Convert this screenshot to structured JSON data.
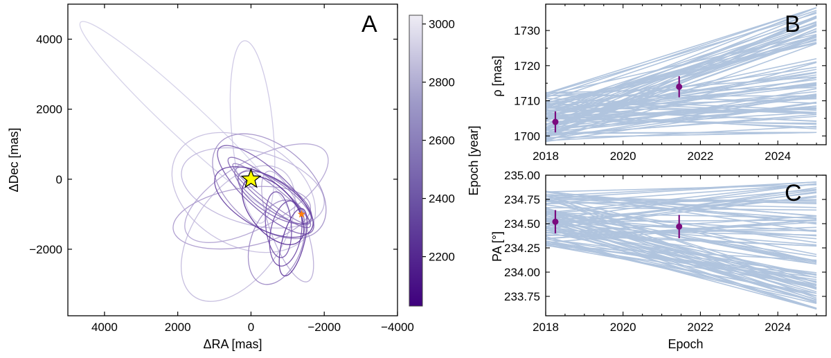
{
  "panels": {
    "A": {
      "letter": "A"
    },
    "B": {
      "letter": "B"
    },
    "C": {
      "letter": "C"
    }
  },
  "colors": {
    "orbit_light": "#d6d3ea",
    "orbit_dark": "#4b1d8f",
    "model_line": "#b0c4de",
    "data_point": "#7a0a7e",
    "star_fill": "#ffff00",
    "companion": "#ff7f0e"
  },
  "chart_data": [
    {
      "panel": "A",
      "type": "line",
      "description": "Sampled orbit tracks of the companion relative to the primary star",
      "xlabel": "ΔRA [mas]",
      "ylabel": "ΔDec [mas]",
      "xlim": [
        5000,
        -4000
      ],
      "ylim": [
        -3900,
        5000
      ],
      "xticks": [
        4000,
        2000,
        0,
        -2000,
        -4000
      ],
      "xtick_labels": [
        "4000",
        "2000",
        "0",
        "−2000",
        "−4000"
      ],
      "yticks": [
        4000,
        2000,
        0,
        -2000
      ],
      "ytick_labels": [
        "4000",
        "2000",
        "0",
        "−2000"
      ],
      "primary_star": {
        "x": 0,
        "y": 0,
        "marker": "star"
      },
      "companion_position": {
        "x": -1380,
        "y": -1000,
        "marker": "star"
      },
      "orbits_shown": [
        {
          "cx": 1800,
          "cy": 1700,
          "a": 3900,
          "b": 480,
          "angle": 137,
          "epoch": 3000
        },
        {
          "cx": -40,
          "cy": 1350,
          "a": 2500,
          "b": 570,
          "angle": 95,
          "epoch": 2950
        },
        {
          "cx": 200,
          "cy": -380,
          "a": 2100,
          "b": 1450,
          "angle": 150,
          "epoch": 2900
        },
        {
          "cx": 350,
          "cy": -1550,
          "a": 2100,
          "b": 1200,
          "angle": 55,
          "epoch": 2880
        },
        {
          "cx": -50,
          "cy": -250,
          "a": 2000,
          "b": 1000,
          "angle": 165,
          "epoch": 2850
        },
        {
          "cx": -1000,
          "cy": -1350,
          "a": 1600,
          "b": 480,
          "angle": 110,
          "epoch": 2800
        },
        {
          "cx": -150,
          "cy": -400,
          "a": 2200,
          "b": 900,
          "angle": 30,
          "epoch": 2760
        },
        {
          "cx": 250,
          "cy": -1100,
          "a": 1900,
          "b": 800,
          "angle": 10,
          "epoch": 2700
        },
        {
          "cx": -500,
          "cy": -200,
          "a": 1800,
          "b": 1100,
          "angle": 140,
          "epoch": 2650
        },
        {
          "cx": -700,
          "cy": -1800,
          "a": 1200,
          "b": 700,
          "angle": 70,
          "epoch": 2600
        },
        {
          "cx": -550,
          "cy": -420,
          "a": 1320,
          "b": 210,
          "angle": 142,
          "epoch": 2550
        },
        {
          "cx": -600,
          "cy": -470,
          "a": 1250,
          "b": 380,
          "angle": 145,
          "epoch": 2500
        },
        {
          "cx": -500,
          "cy": -380,
          "a": 1450,
          "b": 300,
          "angle": 140,
          "epoch": 2450
        },
        {
          "cx": -650,
          "cy": -520,
          "a": 1150,
          "b": 460,
          "angle": 148,
          "epoch": 2400
        },
        {
          "cx": -400,
          "cy": -300,
          "a": 1700,
          "b": 550,
          "angle": 138,
          "epoch": 2350
        },
        {
          "cx": -750,
          "cy": -1300,
          "a": 900,
          "b": 350,
          "angle": 95,
          "epoch": 2300
        },
        {
          "cx": -950,
          "cy": -1550,
          "a": 900,
          "b": 420,
          "angle": 80,
          "epoch": 2250
        },
        {
          "cx": -350,
          "cy": -650,
          "a": 1500,
          "b": 700,
          "angle": 150,
          "epoch": 2200
        },
        {
          "cx": -1150,
          "cy": -1800,
          "a": 950,
          "b": 300,
          "angle": 75,
          "epoch": 2150
        },
        {
          "cx": -600,
          "cy": -900,
          "a": 1100,
          "b": 600,
          "angle": 130,
          "epoch": 2100
        }
      ],
      "colorbar": {
        "label": "Epoch [year]",
        "range": [
          2030,
          3030
        ],
        "ticks": [
          2200,
          2400,
          2600,
          2800,
          3000
        ],
        "tick_labels": [
          "2200",
          "2400",
          "2600",
          "2800",
          "3000"
        ]
      }
    },
    {
      "panel": "B",
      "type": "line",
      "description": "Separation vs epoch; blue lines are orbit model draws, points are measurements",
      "xlabel": "",
      "ylabel": "ρ [mas]",
      "xlim": [
        2018.0,
        2025.25
      ],
      "ylim": [
        1697.5,
        1737.5
      ],
      "xticks": [
        2018,
        2020,
        2022,
        2024
      ],
      "xtick_labels": [
        "2018",
        "2020",
        "2022",
        "2024"
      ],
      "yticks": [
        1700,
        1705,
        1710,
        1715,
        1720,
        1725,
        1730
      ],
      "ytick_labels": [
        "1700",
        "1710",
        "1720",
        "1730"
      ],
      "model_line_range": {
        "x": [
          2018.0,
          2025.0
        ],
        "start_min": 1698.3,
        "start_max": 1713.0,
        "end_min": 1701.0,
        "end_max": 1736.5
      },
      "points": [
        {
          "x": 2018.25,
          "y": 1704.0,
          "yerr": 3.0
        },
        {
          "x": 2021.45,
          "y": 1714.0,
          "yerr": 3.0
        }
      ]
    },
    {
      "panel": "C",
      "type": "line",
      "description": "Position angle vs epoch; blue lines are orbit model draws, points are measurements",
      "xlabel": "Epoch",
      "ylabel": "PA [°]",
      "xlim": [
        2018.0,
        2025.25
      ],
      "ylim": [
        233.55,
        235.0
      ],
      "xticks": [
        2018,
        2020,
        2022,
        2024
      ],
      "xtick_labels": [
        "2018",
        "2020",
        "2022",
        "2024"
      ],
      "yticks": [
        233.75,
        234.0,
        234.25,
        234.5,
        234.75,
        235.0
      ],
      "ytick_labels": [
        "233.75",
        "234.00",
        "234.25",
        "234.50",
        "234.75",
        "235.00"
      ],
      "model_line_range": {
        "x": [
          2018.0,
          2025.0
        ],
        "start_min": 234.27,
        "start_max": 234.85,
        "end_min": 233.62,
        "end_max": 234.93
      },
      "points": [
        {
          "x": 2018.25,
          "y": 234.52,
          "yerr": 0.12
        },
        {
          "x": 2021.45,
          "y": 234.47,
          "yerr": 0.12
        }
      ]
    }
  ]
}
